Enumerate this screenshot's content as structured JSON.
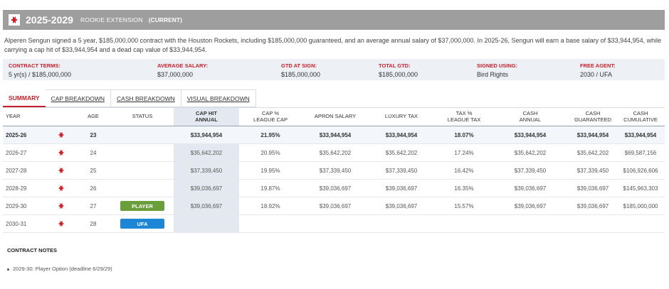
{
  "header": {
    "years": "2025-2029",
    "contract_type": "ROOKIE EXTENSION",
    "current_label": "(CURRENT)",
    "logo_icon": "houston-rockets-logo",
    "brand_color": "#c8202a"
  },
  "description": "Alperen Sengun signed a 5 year, $185,000,000 contract with the Houston Rockets, including $185,000,000 guaranteed, and an average annual salary of $37,000,000. In 2025-26, Sengun will earn a base salary of $33,944,954, while carrying a cap hit of $33,944,954 and a dead cap value of $33,944,954.",
  "terms": [
    {
      "label": "CONTRACT TERMS:",
      "value": "5 yr(s) / $185,000,000"
    },
    {
      "label": "AVERAGE SALARY:",
      "value": "$37,000,000"
    },
    {
      "label": "GTD AT SIGN:",
      "value": "$185,000,000"
    },
    {
      "label": "TOTAL GTD:",
      "value": "$185,000,000"
    },
    {
      "label": "SIGNED USING:",
      "value": "Bird Rights"
    },
    {
      "label": "FREE AGENT:",
      "value": "2030 / UFA"
    }
  ],
  "tabs": [
    {
      "label": "SUMMARY"
    },
    {
      "label": "CAP BREAKDOWN"
    },
    {
      "label": "CASH BREAKDOWN"
    },
    {
      "label": "VISUAL BREAKDOWN"
    }
  ],
  "table": {
    "headers": {
      "year": "YEAR",
      "age": "AGE",
      "status": "STATUS",
      "cap_hit_1": "CAP HIT",
      "cap_hit_2": "ANNUAL",
      "cap_pct_1": "CAP %",
      "cap_pct_2": "LEAGUE CAP",
      "apron": "APRON SALARY",
      "lux": "LUXURY TAX",
      "tax_pct_1": "TAX %",
      "tax_pct_2": "LEAGUE TAX",
      "cash_ann_1": "CASH",
      "cash_ann_2": "ANNUAL",
      "cash_gtd_1": "CASH",
      "cash_gtd_2": "GUARANTEED",
      "cash_cum_1": "CASH",
      "cash_cum_2": "CUMULATIVE"
    },
    "rows": [
      {
        "year": "2025-26",
        "age": "23",
        "status": "",
        "cap": "$33,944,954",
        "pct": "21.95%",
        "apron": "$33,944,954",
        "lux": "$33,944,954",
        "taxp": "18.07%",
        "cashann": "$33,944,954",
        "cashgtd": "$33,944,954",
        "cashcum": "$33,944,954"
      },
      {
        "year": "2026-27",
        "age": "24",
        "status": "",
        "cap": "$35,642,202",
        "pct": "20.95%",
        "apron": "$35,642,202",
        "lux": "$35,642,202",
        "taxp": "17.24%",
        "cashann": "$35,642,202",
        "cashgtd": "$35,642,202",
        "cashcum": "$69,587,156"
      },
      {
        "year": "2027-28",
        "age": "25",
        "status": "",
        "cap": "$37,339,450",
        "pct": "19.95%",
        "apron": "$37,339,450",
        "lux": "$37,339,450",
        "taxp": "16.42%",
        "cashann": "$37,339,450",
        "cashgtd": "$37,339,450",
        "cashcum": "$106,926,606"
      },
      {
        "year": "2028-29",
        "age": "26",
        "status": "",
        "cap": "$39,036,697",
        "pct": "19.87%",
        "apron": "$39,036,697",
        "lux": "$39,036,697",
        "taxp": "16.35%",
        "cashann": "$39,036,697",
        "cashgtd": "$39,036,697",
        "cashcum": "$145,963,303"
      },
      {
        "year": "2029-30",
        "age": "27",
        "status": "PLAYER",
        "cap": "$39,036,697",
        "pct": "18.92%",
        "apron": "$39,036,697",
        "lux": "$39,036,697",
        "taxp": "15.57%",
        "cashann": "$39,036,697",
        "cashgtd": "$39,036,697",
        "cashcum": "$185,000,000"
      },
      {
        "year": "2030-31",
        "age": "28",
        "status": "UFA",
        "cap": "",
        "pct": "",
        "apron": "",
        "lux": "",
        "taxp": "",
        "cashann": "",
        "cashgtd": "",
        "cashcum": ""
      }
    ]
  },
  "notes": {
    "title": "CONTRACT NOTES",
    "items": [
      "2029-30: Player Option (deadline 6/29/29)"
    ]
  }
}
